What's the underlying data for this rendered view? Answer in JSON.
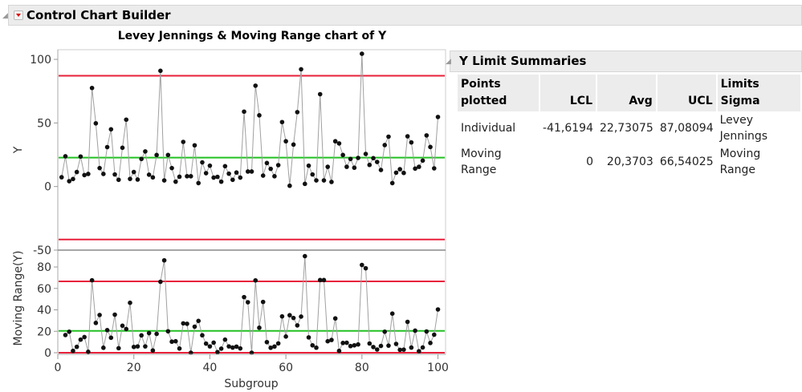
{
  "header": {
    "title": "Control Chart Builder"
  },
  "limit_summary": {
    "title": "Y Limit Summaries",
    "columns": [
      "Points plotted",
      "LCL",
      "Avg",
      "UCL",
      "Limits Sigma"
    ],
    "column0_lines": [
      "Points",
      "plotted"
    ],
    "rows": [
      [
        "Individual",
        "-41,6194",
        "22,73075",
        "87,08094",
        "Levey Jennings"
      ],
      [
        "Moving Range",
        "0",
        "20,3703",
        "66,54025",
        "Moving Range"
      ]
    ]
  },
  "colors": {
    "limit": "#e8203a",
    "center": "#22c022",
    "line": "#a0a0a0",
    "point": "#111111"
  },
  "chart_data": [
    {
      "type": "line",
      "title": "Levey Jennings & Moving Range chart of Y",
      "xlabel": "Subgroup",
      "ylabel": "Y",
      "xlim": [
        0,
        102
      ],
      "ylim": [
        -50,
        107.6
      ],
      "xticks": [
        0,
        20,
        40,
        60,
        80,
        100
      ],
      "yticks": [
        100,
        50,
        0,
        -50
      ],
      "limits": {
        "lcl": -41.6194,
        "avg": 22.73075,
        "ucl": 87.08094
      },
      "x_start": 1,
      "values": [
        7.3,
        23.8,
        4.2,
        5.9,
        11.4,
        23.6,
        9,
        9.9,
        77.5,
        49.7,
        14.5,
        9.9,
        31,
        45,
        9.5,
        5.3,
        30.5,
        52.6,
        6,
        11.4,
        5.5,
        21.7,
        27.6,
        9.3,
        7.2,
        24.8,
        91,
        4.8,
        24.8,
        14.5,
        3.8,
        7.7,
        35.1,
        8.1,
        8.1,
        32.4,
        2.7,
        19,
        10.5,
        16.4,
        7,
        7.6,
        3.8,
        16,
        10.1,
        5.3,
        11,
        7,
        58.9,
        11.8,
        11.8,
        79.3,
        56,
        8.6,
        18.5,
        13.9,
        8.1,
        16.8,
        50.7,
        35.6,
        0.6,
        33,
        58.5,
        92.2,
        2.1,
        16.4,
        9.5,
        4.8,
        72.6,
        4.8,
        15.5,
        3.6,
        35.6,
        33.9,
        24.8,
        15.5,
        21.7,
        14.8,
        22.5,
        104.4,
        25.6,
        17,
        22.3,
        19.3,
        13,
        32.6,
        39.2,
        2.7,
        10.9,
        13.6,
        10.7,
        39.5,
        34.7,
        14.1,
        15.5,
        20.4,
        40.2,
        31.1,
        14.3,
        54.7
      ]
    },
    {
      "type": "line",
      "xlabel": "Subgroup",
      "ylabel": "Moving Range(Y)",
      "xlim": [
        0,
        102
      ],
      "ylim": [
        0,
        95
      ],
      "yticks": [
        80,
        60,
        40,
        20,
        0
      ],
      "limits": {
        "lcl": 0,
        "avg": 20.3703,
        "ucl": 66.54025
      },
      "derived_from": "abs difference of consecutive Y values",
      "x_start": 2
    }
  ]
}
